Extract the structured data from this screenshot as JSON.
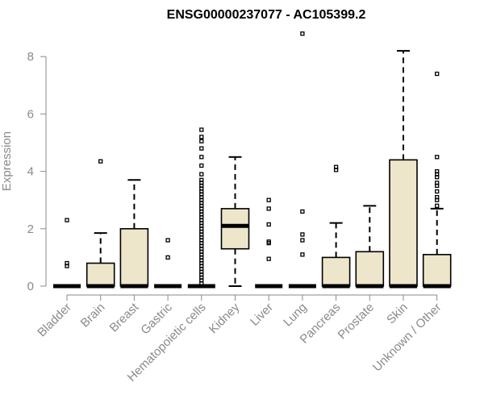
{
  "chart_data": {
    "type": "boxplot",
    "title": "ENSG00000237077 - AC105399.2",
    "ylabel": "Expression",
    "ylim": [
      0,
      8.5
    ],
    "yticks": [
      0,
      2,
      4,
      6,
      8
    ],
    "categories": [
      "Bladder",
      "Brain",
      "Breast",
      "Gastric",
      "Hematopoietic cells",
      "Kidney",
      "Liver",
      "Lung",
      "Pancreas",
      "Prostate",
      "Skin",
      "Unknown / Other"
    ],
    "boxes": [
      {
        "category": "Bladder",
        "min": 0,
        "q1": 0,
        "median": 0,
        "q3": 0,
        "max": 0,
        "outliers": [
          0.7,
          0.8,
          2.3
        ]
      },
      {
        "category": "Brain",
        "min": 0,
        "q1": 0,
        "median": 0,
        "q3": 0.8,
        "max": 1.85,
        "outliers": [
          4.35
        ]
      },
      {
        "category": "Breast",
        "min": 0,
        "q1": 0,
        "median": 0,
        "q3": 2.0,
        "max": 3.7,
        "outliers": []
      },
      {
        "category": "Gastric",
        "min": 0,
        "q1": 0,
        "median": 0,
        "q3": 0,
        "max": 0,
        "outliers": [
          1.0,
          1.6
        ]
      },
      {
        "category": "Hematopoietic cells",
        "min": 0,
        "q1": 0,
        "median": 0,
        "q3": 0,
        "max": 0,
        "outliers": [
          0.1,
          0.2,
          0.3,
          0.4,
          0.5,
          0.6,
          0.7,
          0.8,
          0.9,
          1.0,
          1.1,
          1.2,
          1.3,
          1.4,
          1.5,
          1.6,
          1.7,
          1.8,
          1.9,
          2.0,
          2.1,
          2.2,
          2.3,
          2.4,
          2.5,
          2.6,
          2.7,
          2.8,
          2.9,
          3.0,
          3.1,
          3.2,
          3.3,
          3.4,
          3.5,
          3.6,
          3.7,
          3.9,
          4.2,
          4.5,
          4.8,
          5.05,
          5.2,
          5.45
        ]
      },
      {
        "category": "Kidney",
        "min": 0,
        "q1": 1.3,
        "median": 2.1,
        "q3": 2.7,
        "max": 4.5,
        "outliers": []
      },
      {
        "category": "Liver",
        "min": 0,
        "q1": 0,
        "median": 0,
        "q3": 0,
        "max": 0,
        "outliers": [
          0.95,
          1.5,
          1.55,
          2.15,
          2.7,
          3.0
        ]
      },
      {
        "category": "Lung",
        "min": 0,
        "q1": 0,
        "median": 0,
        "q3": 0,
        "max": 0,
        "outliers": [
          1.1,
          1.6,
          1.8,
          2.6,
          8.8
        ]
      },
      {
        "category": "Pancreas",
        "min": 0,
        "q1": 0,
        "median": 0,
        "q3": 1.0,
        "max": 2.2,
        "outliers": [
          4.05,
          4.15
        ]
      },
      {
        "category": "Prostate",
        "min": 0,
        "q1": 0,
        "median": 0,
        "q3": 1.2,
        "max": 2.8,
        "outliers": []
      },
      {
        "category": "Skin",
        "min": 0,
        "q1": 0,
        "median": 0,
        "q3": 4.4,
        "max": 8.2,
        "outliers": []
      },
      {
        "category": "Unknown / Other",
        "min": 0,
        "q1": 0,
        "median": 0,
        "q3": 1.1,
        "max": 2.7,
        "outliers": [
          2.8,
          3.0,
          3.1,
          3.3,
          3.5,
          3.6,
          3.8,
          3.9,
          4.0,
          4.5,
          7.4
        ]
      }
    ],
    "box_color": "#ede6cb",
    "axis_color": "#8a8a8a",
    "grid": false,
    "legend": "none"
  }
}
